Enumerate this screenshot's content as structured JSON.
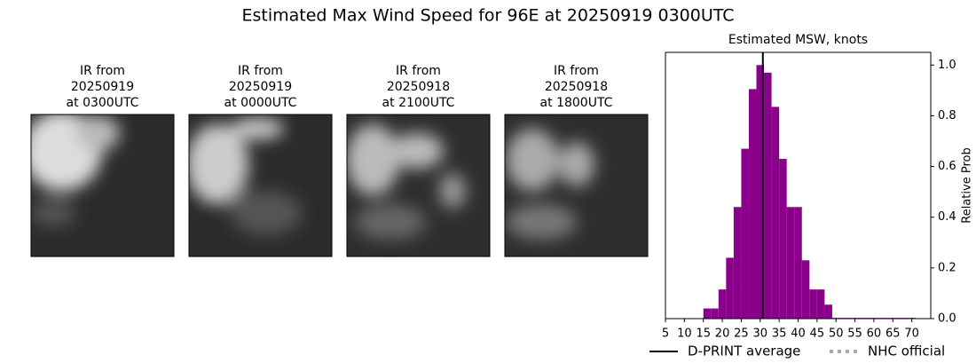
{
  "title": "Estimated Max Wind Speed for 96E at 20250919 0300UTC",
  "panels": [
    {
      "lines": [
        "IR from",
        "20250919",
        "at 0300UTC"
      ]
    },
    {
      "lines": [
        "IR from",
        "20250919",
        "at 0000UTC"
      ]
    },
    {
      "lines": [
        "IR from",
        "20250918",
        "at 2100UTC"
      ]
    },
    {
      "lines": [
        "IR from",
        "20250918",
        "at 1800UTC"
      ]
    }
  ],
  "chart_data": {
    "type": "histogram",
    "title": "Estimated MSW, knots",
    "y_label": "Relative Prob",
    "bins": [
      15,
      17,
      19,
      21,
      23,
      25,
      27,
      29,
      31,
      33,
      35,
      37,
      39,
      41,
      43,
      45,
      47,
      49,
      51,
      53,
      55,
      57,
      59,
      61,
      63,
      65,
      67,
      69,
      71
    ],
    "values": [
      0.04,
      0.04,
      0.115,
      0.24,
      0.44,
      0.67,
      0.905,
      1.0,
      0.97,
      0.835,
      0.63,
      0.44,
      0.44,
      0.23,
      0.115,
      0.115,
      0.055,
      0.003,
      0.003,
      0.003,
      0.003,
      0.003,
      0.003,
      0.003,
      0.003,
      0.003,
      0.003,
      0.003
    ],
    "color": "#8b008b",
    "xlim": [
      5,
      75
    ],
    "xticks": [
      5,
      10,
      15,
      20,
      25,
      30,
      35,
      40,
      45,
      50,
      55,
      60,
      65,
      70
    ],
    "ylim": [
      0,
      1.05
    ],
    "yticks": [
      {
        "value": 0,
        "label": "0.0"
      },
      0.2,
      0.4,
      0.6,
      0.8,
      {
        "value": 1,
        "label": "1.0"
      }
    ],
    "markers": [
      {
        "name": "D-PRINT average",
        "x": 30.7,
        "color": "#000000",
        "style": "solid"
      },
      {
        "name": "NHC official",
        "color": "#aaaaaa",
        "style": "dotted"
      }
    ]
  }
}
